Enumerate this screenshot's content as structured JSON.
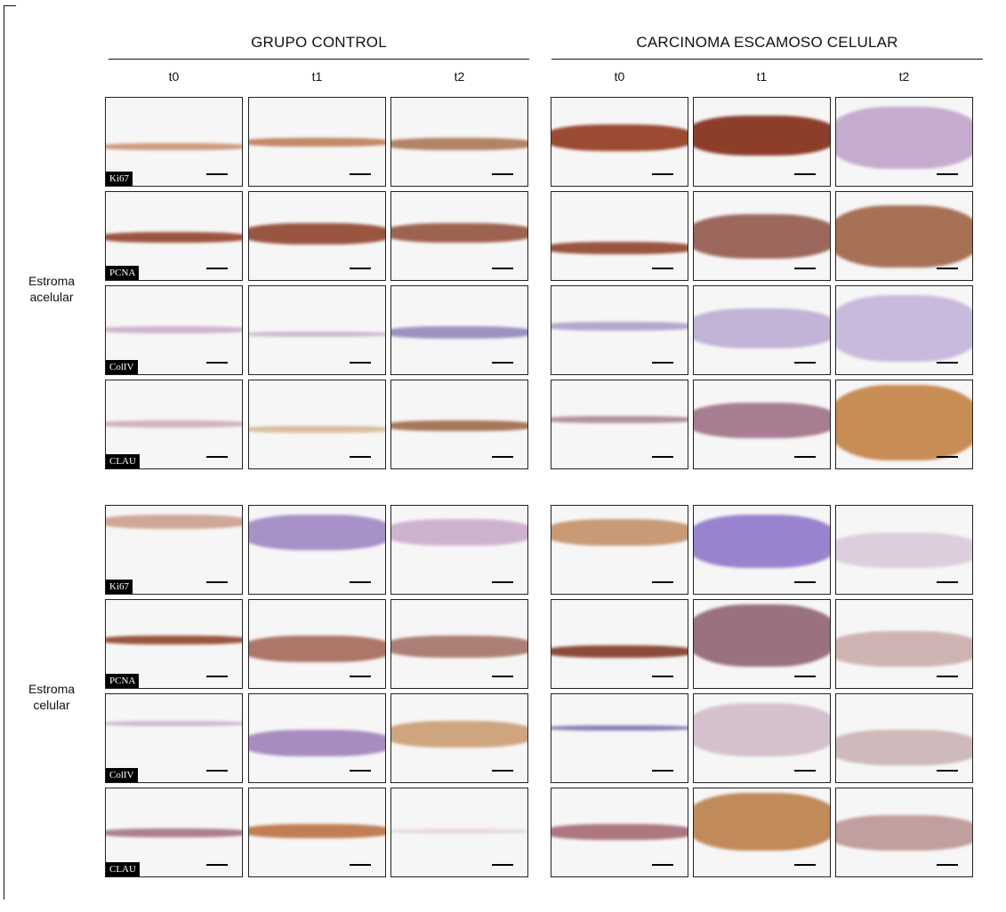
{
  "header": {
    "groups": [
      {
        "title": "GRUPO CONTROL",
        "columns": [
          "t0",
          "t1",
          "t2"
        ]
      },
      {
        "title": "CARCINOMA ESCAMOSO CELULAR",
        "columns": [
          "t0",
          "t1",
          "t2"
        ]
      }
    ]
  },
  "blocks": [
    {
      "label": "Estroma acelular",
      "stains": [
        "Ki67",
        "PCNA",
        "ColIV",
        "CLAU"
      ]
    },
    {
      "label": "Estroma celular",
      "stains": [
        "Ki67",
        "PCNA",
        "ColIV",
        "CLAU"
      ]
    }
  ]
}
